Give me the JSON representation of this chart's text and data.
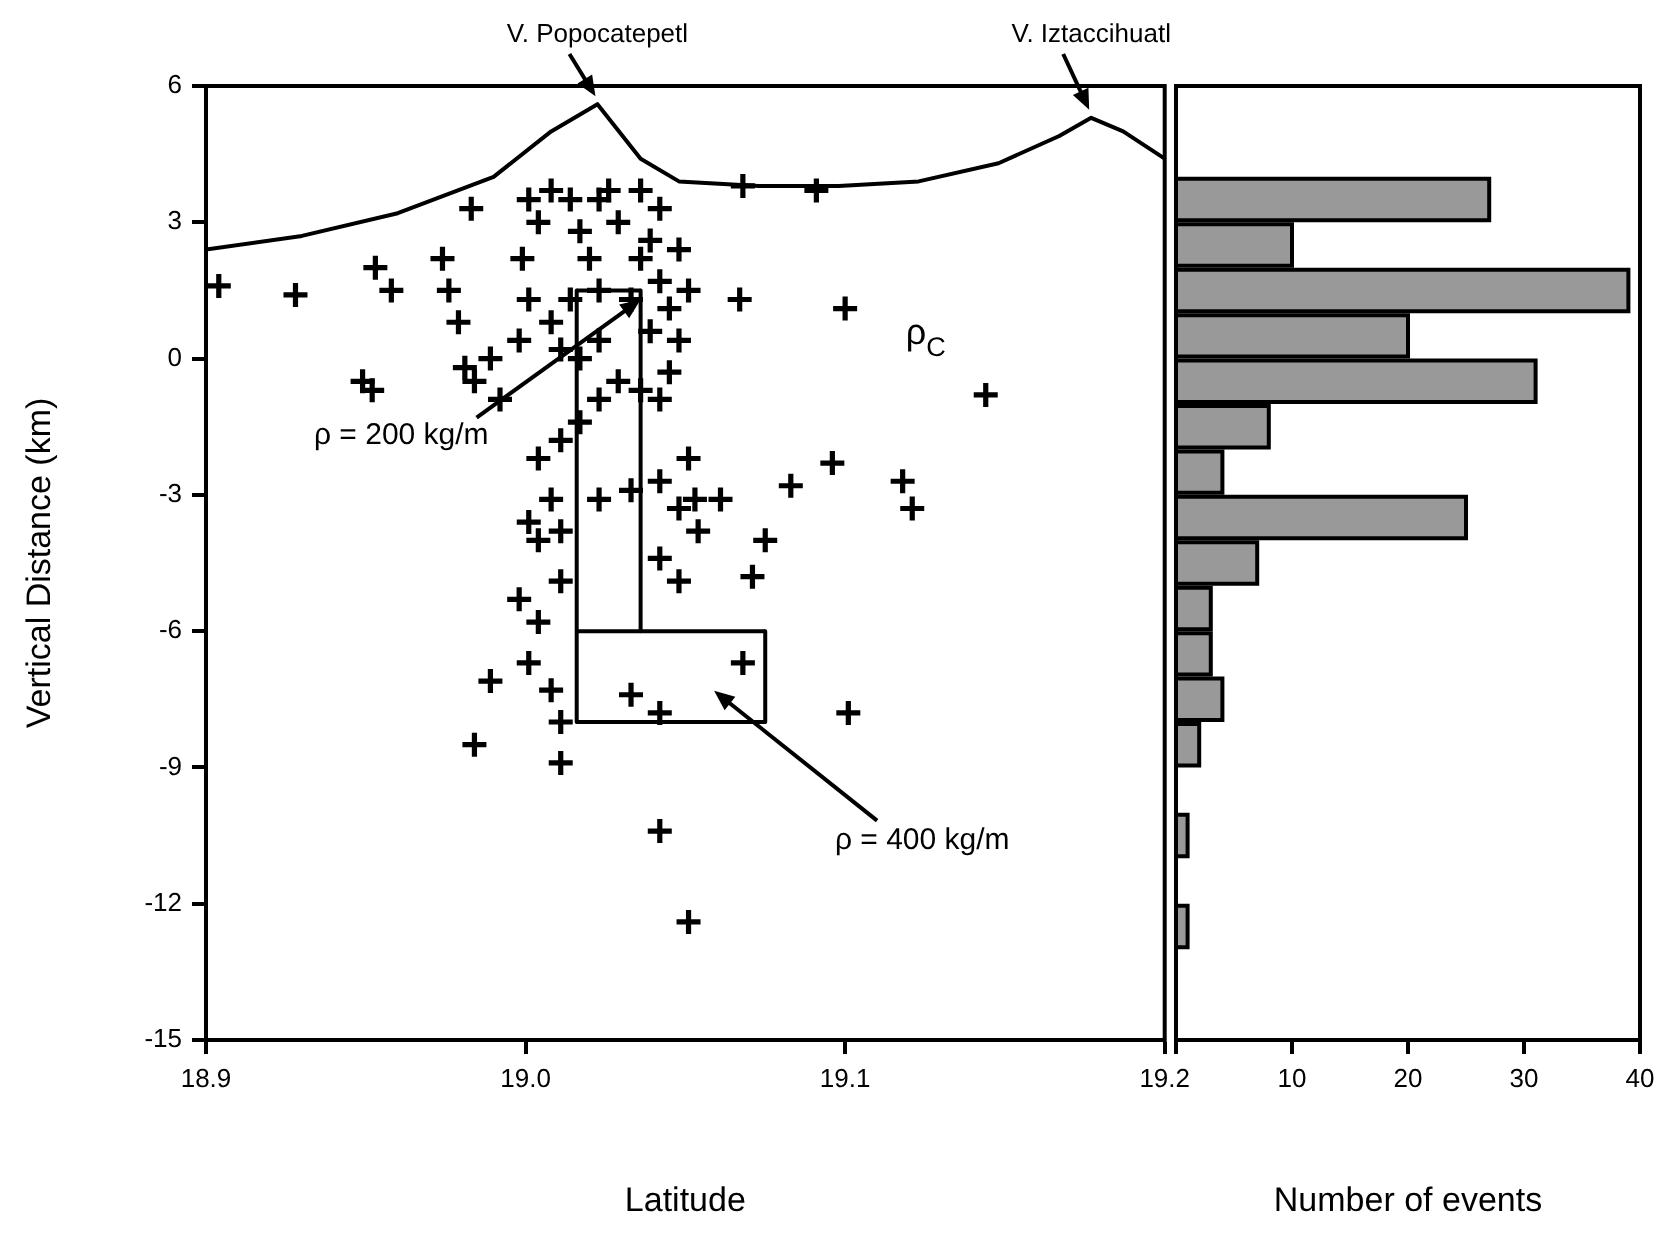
{
  "chart_data": [
    {
      "type": "scatter",
      "xlabel": "Latitude",
      "ylabel": "Vertical Distance (km)",
      "xlim": [
        18.9,
        19.2
      ],
      "xticks": [
        18.9,
        {
          "value": 19.0,
          "label": "19.0"
        },
        19.1,
        19.2
      ],
      "ylim": [
        -15,
        6
      ],
      "yticks": [
        -15,
        -12,
        -9,
        -6,
        -3,
        0,
        3,
        6
      ],
      "series": [
        {
          "type": "scatter",
          "color": "#000000",
          "marker": "cross",
          "x": [
            18.904,
            18.928,
            18.953,
            18.958,
            18.974,
            18.976,
            18.983,
            18.979,
            18.949,
            18.952,
            18.981,
            18.984,
            18.989,
            18.992,
            18.998,
            19.001,
            18.999,
            19.004,
            19.001,
            19.008,
            19.014,
            19.017,
            19.023,
            19.026,
            19.029,
            19.02,
            19.023,
            19.014,
            19.008,
            19.011,
            19.017,
            19.023,
            19.033,
            19.036,
            19.039,
            19.042,
            19.045,
            19.048,
            19.051,
            19.048,
            19.042,
            19.036,
            19.039,
            19.029,
            19.036,
            19.042,
            19.045,
            19.023,
            19.017,
            19.011,
            19.004,
            19.008,
            19.001,
            19.004,
            19.011,
            19.023,
            19.033,
            19.042,
            19.051,
            19.048,
            19.054,
            19.061,
            19.042,
            19.048,
            19.011,
            19.004,
            18.998,
            19.001,
            19.008,
            19.011,
            19.011,
            18.989,
            18.984,
            19.068,
            19.042,
            19.042,
            19.051,
            19.033,
            19.068,
            19.067,
            19.1,
            19.144,
            19.096,
            19.118,
            19.121,
            19.083,
            19.075,
            19.071,
            19.053,
            19.101,
            19.091
          ],
          "values": [
            1.6,
            1.4,
            2.0,
            1.5,
            2.2,
            1.5,
            3.3,
            0.8,
            -0.5,
            -0.7,
            -0.2,
            -0.5,
            0.0,
            -0.9,
            0.4,
            1.3,
            2.2,
            3.0,
            3.5,
            3.7,
            3.5,
            2.8,
            3.5,
            3.7,
            3.0,
            2.2,
            1.5,
            1.3,
            0.8,
            0.2,
            0.0,
            0.4,
            1.3,
            2.2,
            2.6,
            1.7,
            1.1,
            0.4,
            1.5,
            2.4,
            3.3,
            3.7,
            0.6,
            -0.5,
            -0.7,
            -0.9,
            -0.3,
            -0.9,
            -1.4,
            -1.8,
            -2.2,
            -3.1,
            -3.6,
            -4.0,
            -3.8,
            -3.1,
            -2.9,
            -2.7,
            -2.2,
            -3.3,
            -3.8,
            -3.1,
            -4.4,
            -4.9,
            -4.9,
            -5.8,
            -5.3,
            -6.7,
            -7.3,
            -8.0,
            -8.9,
            -7.1,
            -8.5,
            3.8,
            -7.8,
            -10.4,
            -12.4,
            -7.4,
            -6.7,
            1.3,
            1.1,
            -0.8,
            -2.3,
            -2.7,
            -3.3,
            -2.8,
            -4.0,
            -4.8,
            -3.1,
            -7.8,
            3.7
          ]
        },
        {
          "type": "line",
          "color": "#000000",
          "x": [
            18.9,
            18.93,
            18.96,
            18.99,
            19.008,
            19.0225,
            19.036,
            19.048,
            19.073,
            19.098,
            19.123,
            19.148,
            19.167,
            19.177,
            19.187,
            19.2
          ],
          "values": [
            2.4,
            2.7,
            3.2,
            4.0,
            5.0,
            5.6,
            4.4,
            3.9,
            3.8,
            3.8,
            3.9,
            4.3,
            4.9,
            5.3,
            5.0,
            4.4
          ]
        },
        {
          "type": "line",
          "color": "#000000",
          "x": [
            19.016,
            19.036
          ],
          "values": [
            1.5,
            1.5
          ]
        },
        {
          "type": "line",
          "color": "#000000",
          "x": [
            19.016,
            19.075
          ],
          "values": [
            -6,
            -6
          ]
        },
        {
          "type": "line",
          "color": "#000000",
          "x": [
            19.016,
            19.075
          ],
          "values": [
            -8,
            -8
          ]
        },
        {
          "type": "line",
          "color": "#000000",
          "x": [
            19.016,
            19.016
          ],
          "values": [
            1.5,
            -8
          ]
        },
        {
          "type": "line",
          "color": "#000000",
          "x": [
            19.036,
            19.036
          ],
          "values": [
            1.5,
            -6
          ]
        },
        {
          "type": "line",
          "color": "#000000",
          "x": [
            19.075,
            19.075
          ],
          "values": [
            -6,
            -8
          ]
        }
      ],
      "annotations": [
        {
          "text": "V. Popocatepetl",
          "x": 19.0225,
          "y": 5.6
        },
        {
          "text": "V. Iztaccihuatl",
          "x": 19.177,
          "y": 5.3
        },
        {
          "text": "ρ = 200 kg/m",
          "x": 19.036,
          "y": 1.3
        },
        "ρ = 400 kg/m",
        "ρ$_{C}$"
      ]
    },
    {
      "type": "histogram",
      "orientation": "horizontal",
      "xlabel": "Number of events",
      "color": "#999999",
      "bins": [
        -13,
        -12,
        -11,
        -10,
        -9,
        -8,
        -7,
        -6,
        -5,
        -4,
        -3,
        -2,
        -1,
        0,
        1,
        2,
        3,
        4
      ],
      "values": [
        1,
        0,
        1,
        0,
        2,
        4,
        3,
        3,
        7,
        25,
        4,
        8,
        31,
        20,
        39,
        10,
        27
      ],
      "xlim": [
        0,
        40
      ],
      "xticks": [
        {
          "value": 0,
          "label": null
        },
        10,
        20,
        30,
        40
      ],
      "ylim": [
        -15,
        6
      ],
      "tick_labels": "x"
    }
  ]
}
